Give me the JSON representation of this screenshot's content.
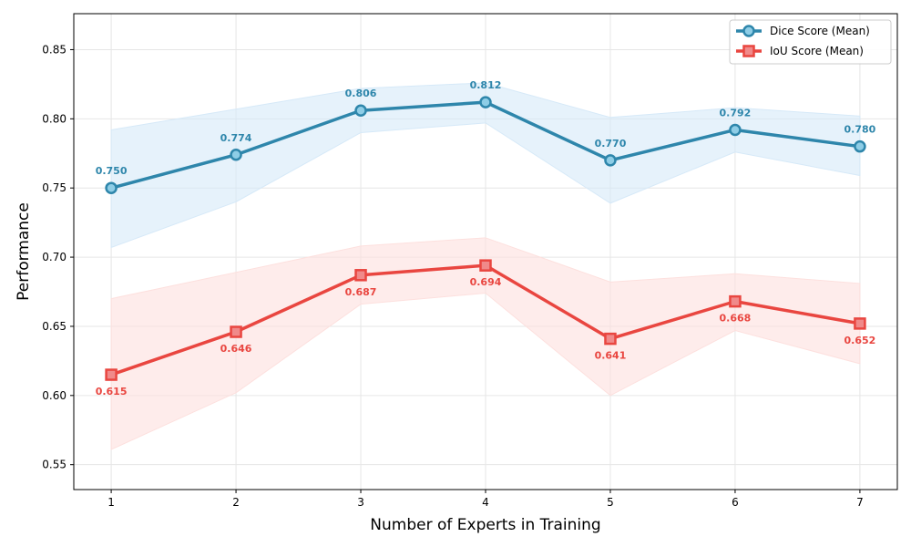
{
  "chart_data": {
    "type": "line",
    "title": "",
    "xlabel": "Number of Experts in Training",
    "ylabel": "Performance",
    "x": [
      1,
      2,
      3,
      4,
      5,
      6,
      7
    ],
    "xlim": [
      0.7,
      7.3
    ],
    "ylim": [
      0.532,
      0.876
    ],
    "yticks": [
      0.55,
      0.6,
      0.65,
      0.7,
      0.75,
      0.8,
      0.85
    ],
    "grid": true,
    "legend_position": "top-right",
    "series": [
      {
        "name": "Dice Score (Mean)",
        "marker": "circle",
        "color": "#2e86ab",
        "marker_fill": "#8ecde6",
        "band_color": "#d6e9f8",
        "values": [
          0.75,
          0.774,
          0.806,
          0.812,
          0.77,
          0.792,
          0.78
        ],
        "lower": [
          0.707,
          0.74,
          0.79,
          0.797,
          0.739,
          0.776,
          0.759
        ],
        "upper": [
          0.792,
          0.807,
          0.822,
          0.826,
          0.801,
          0.808,
          0.802
        ],
        "labels": [
          "0.750",
          "0.774",
          "0.806",
          "0.812",
          "0.770",
          "0.792",
          "0.780"
        ],
        "label_side": "above"
      },
      {
        "name": "IoU Score (Mean)",
        "marker": "square",
        "color": "#e94640",
        "marker_fill": "#f08a8a",
        "band_color": "#fde0de",
        "values": [
          0.615,
          0.646,
          0.687,
          0.694,
          0.641,
          0.668,
          0.652
        ],
        "lower": [
          0.561,
          0.602,
          0.666,
          0.674,
          0.6,
          0.647,
          0.623
        ],
        "upper": [
          0.67,
          0.689,
          0.708,
          0.714,
          0.682,
          0.688,
          0.681
        ],
        "labels": [
          "0.615",
          "0.646",
          "0.687",
          "0.694",
          "0.641",
          "0.668",
          "0.652"
        ],
        "label_side": "below"
      }
    ]
  }
}
